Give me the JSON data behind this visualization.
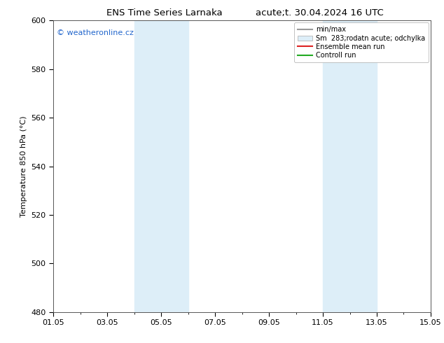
{
  "title_left": "ENS Time Series Larnaka",
  "title_right": "acute;t. 30.04.2024 16 UTC",
  "ylabel": "Temperature 850 hPa (°C)",
  "watermark": "© weatheronline.cz",
  "xtick_labels": [
    "01.05",
    "03.05",
    "05.05",
    "07.05",
    "09.05",
    "11.05",
    "13.05",
    "15.05"
  ],
  "xtick_positions": [
    0,
    2,
    4,
    6,
    8,
    10,
    12,
    14
  ],
  "xlim": [
    0,
    14
  ],
  "ylim": [
    480,
    600
  ],
  "ytick_step": 20,
  "background_color": "#ffffff",
  "plot_bg_color": "#ffffff",
  "shaded_regions": [
    {
      "xstart": 3.0,
      "xend": 5.0,
      "color": "#ddeef8"
    },
    {
      "xstart": 10.0,
      "xend": 12.0,
      "color": "#ddeef8"
    }
  ],
  "legend_entries": [
    {
      "label": "min/max",
      "type": "line",
      "color": "#999999",
      "lw": 1.5
    },
    {
      "label": "Sm  283;rodatn acute; odchylka",
      "type": "patch",
      "facecolor": "#ddeef8",
      "edgecolor": "#aaaaaa"
    },
    {
      "label": "Ensemble mean run",
      "type": "line",
      "color": "#dd2222",
      "lw": 1.5
    },
    {
      "label": "Controll run",
      "type": "line",
      "color": "#22aa22",
      "lw": 1.5
    }
  ],
  "title_fontsize": 9.5,
  "tick_fontsize": 8,
  "label_fontsize": 8,
  "watermark_color": "#2266cc",
  "watermark_fontsize": 8
}
